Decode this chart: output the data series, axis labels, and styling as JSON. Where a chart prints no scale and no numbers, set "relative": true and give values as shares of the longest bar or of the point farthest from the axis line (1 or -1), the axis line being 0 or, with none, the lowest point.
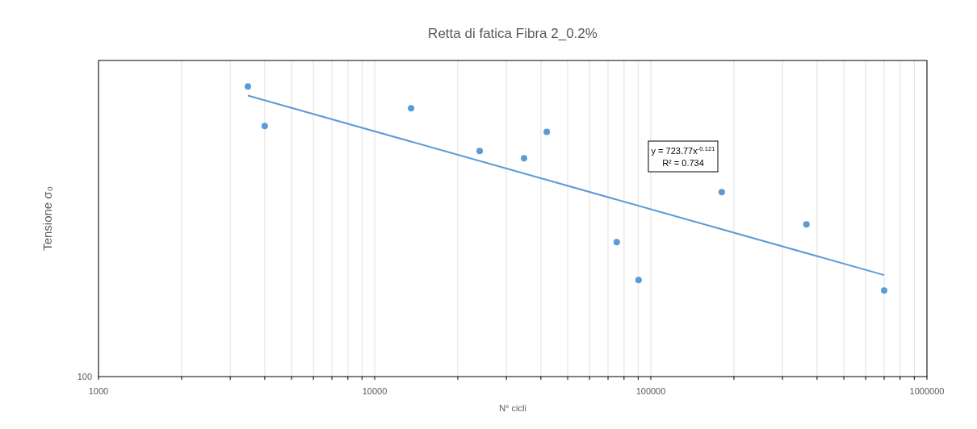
{
  "chart_data": {
    "type": "scatter",
    "title": "Retta di fatica Fibra 2_0.2%",
    "xlabel": "N° cicli",
    "ylabel": "Tensione σ₀",
    "log": "x",
    "grid": "x",
    "relative": true,
    "xlim": [
      1000,
      1000000
    ],
    "xticks": [
      1000,
      {
        "value": 2000,
        "label": null
      },
      {
        "value": 3000,
        "label": null
      },
      {
        "value": 4000,
        "label": null
      },
      {
        "value": 5000,
        "label": null
      },
      {
        "value": 6000,
        "label": null
      },
      {
        "value": 7000,
        "label": null
      },
      {
        "value": 8000,
        "label": null
      },
      {
        "value": 9000,
        "label": null
      },
      10000,
      {
        "value": 20000,
        "label": null
      },
      {
        "value": 30000,
        "label": null
      },
      {
        "value": 40000,
        "label": null
      },
      {
        "value": 50000,
        "label": null
      },
      {
        "value": 60000,
        "label": null
      },
      {
        "value": 70000,
        "label": null
      },
      {
        "value": 80000,
        "label": null
      },
      {
        "value": 90000,
        "label": null
      },
      100000,
      {
        "value": 200000,
        "label": null
      },
      {
        "value": 300000,
        "label": null
      },
      {
        "value": 400000,
        "label": null
      },
      {
        "value": 500000,
        "label": null
      },
      {
        "value": 600000,
        "label": null
      },
      {
        "value": 700000,
        "label": null
      },
      {
        "value": 800000,
        "label": null
      },
      {
        "value": 900000,
        "label": null
      },
      1000000
    ],
    "series": [
      {
        "color": "#5b9bd5",
        "marker": "circle",
        "x": [
          3475,
          4000,
          13550,
          24000,
          34750,
          42000,
          75300,
          90300,
          180700,
          366000,
          700000
        ],
        "values": [
          1,
          0.864,
          0.925,
          0.778,
          0.753,
          0.844,
          0.464,
          0.333,
          0.636,
          0.525,
          0.297
        ]
      },
      {
        "type": "line",
        "color": "#5b9bd5",
        "marker": "none",
        "x": [
          3475,
          700000
        ],
        "values": [
          0.969,
          0.35
        ]
      }
    ],
    "annotations": [
      "100",
      "y = 723.77x$^{-0.121}$",
      "R² = 0.734"
    ]
  }
}
